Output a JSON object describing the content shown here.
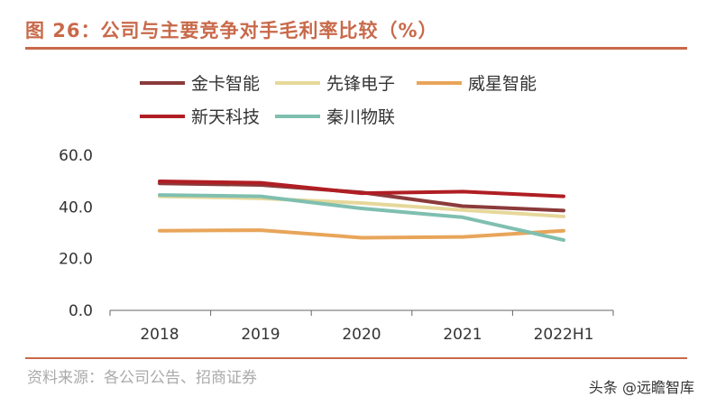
{
  "title": "图 26：公司与主要竞争对手毛利率比较（%）",
  "source": "资料来源：各公司公告、招商证券",
  "watermark": "头条 @远瞻智库",
  "chart_data": {
    "type": "line",
    "title": "",
    "categories": [
      "2018",
      "2019",
      "2020",
      "2021",
      "2022H1"
    ],
    "yticks": [
      "0.0",
      "20.0",
      "40.0",
      "60.0"
    ],
    "ylim": [
      0,
      60
    ],
    "grid": false,
    "legend_placement": "top",
    "series": [
      {
        "name": "金卡智能",
        "color": "#8b3a3a",
        "values": [
          49.1,
          48.5,
          45.6,
          40.3,
          38.6
        ]
      },
      {
        "name": "先锋电子",
        "color": "#e6d89a",
        "values": [
          44.1,
          43.3,
          41.5,
          38.8,
          36.3
        ]
      },
      {
        "name": "威星智能",
        "color": "#e8a55a",
        "values": [
          30.8,
          31.0,
          28.1,
          28.4,
          30.8
        ]
      },
      {
        "name": "新天科技",
        "color": "#b01e23",
        "values": [
          49.9,
          49.3,
          45.3,
          45.9,
          44.1
        ]
      },
      {
        "name": "秦川物联",
        "color": "#7fbfb0",
        "values": [
          44.6,
          44.1,
          39.4,
          36.0,
          27.2
        ]
      }
    ]
  }
}
